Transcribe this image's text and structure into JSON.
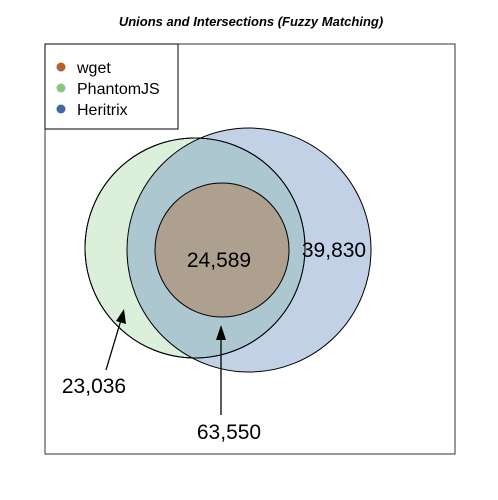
{
  "title": "Unions and Intersections (Fuzzy Matching)",
  "legend": [
    {
      "label": "wget",
      "color": "#b5602f"
    },
    {
      "label": "PhantomJS",
      "color": "#86c786"
    },
    {
      "label": "Heritrix",
      "color": "#3f6aa8"
    }
  ],
  "colors": {
    "phantomjs_fill": "#dbefdb",
    "heritrix_fill": "rgba(95,135,190,0.38)",
    "wget_fill": "#aea08f",
    "outline": "#000000"
  },
  "values": {
    "wget_inside": "24,589",
    "heritrix_only": "39,830",
    "phantomjs_only": "23,036",
    "phantomjs_total": "63,550"
  }
}
